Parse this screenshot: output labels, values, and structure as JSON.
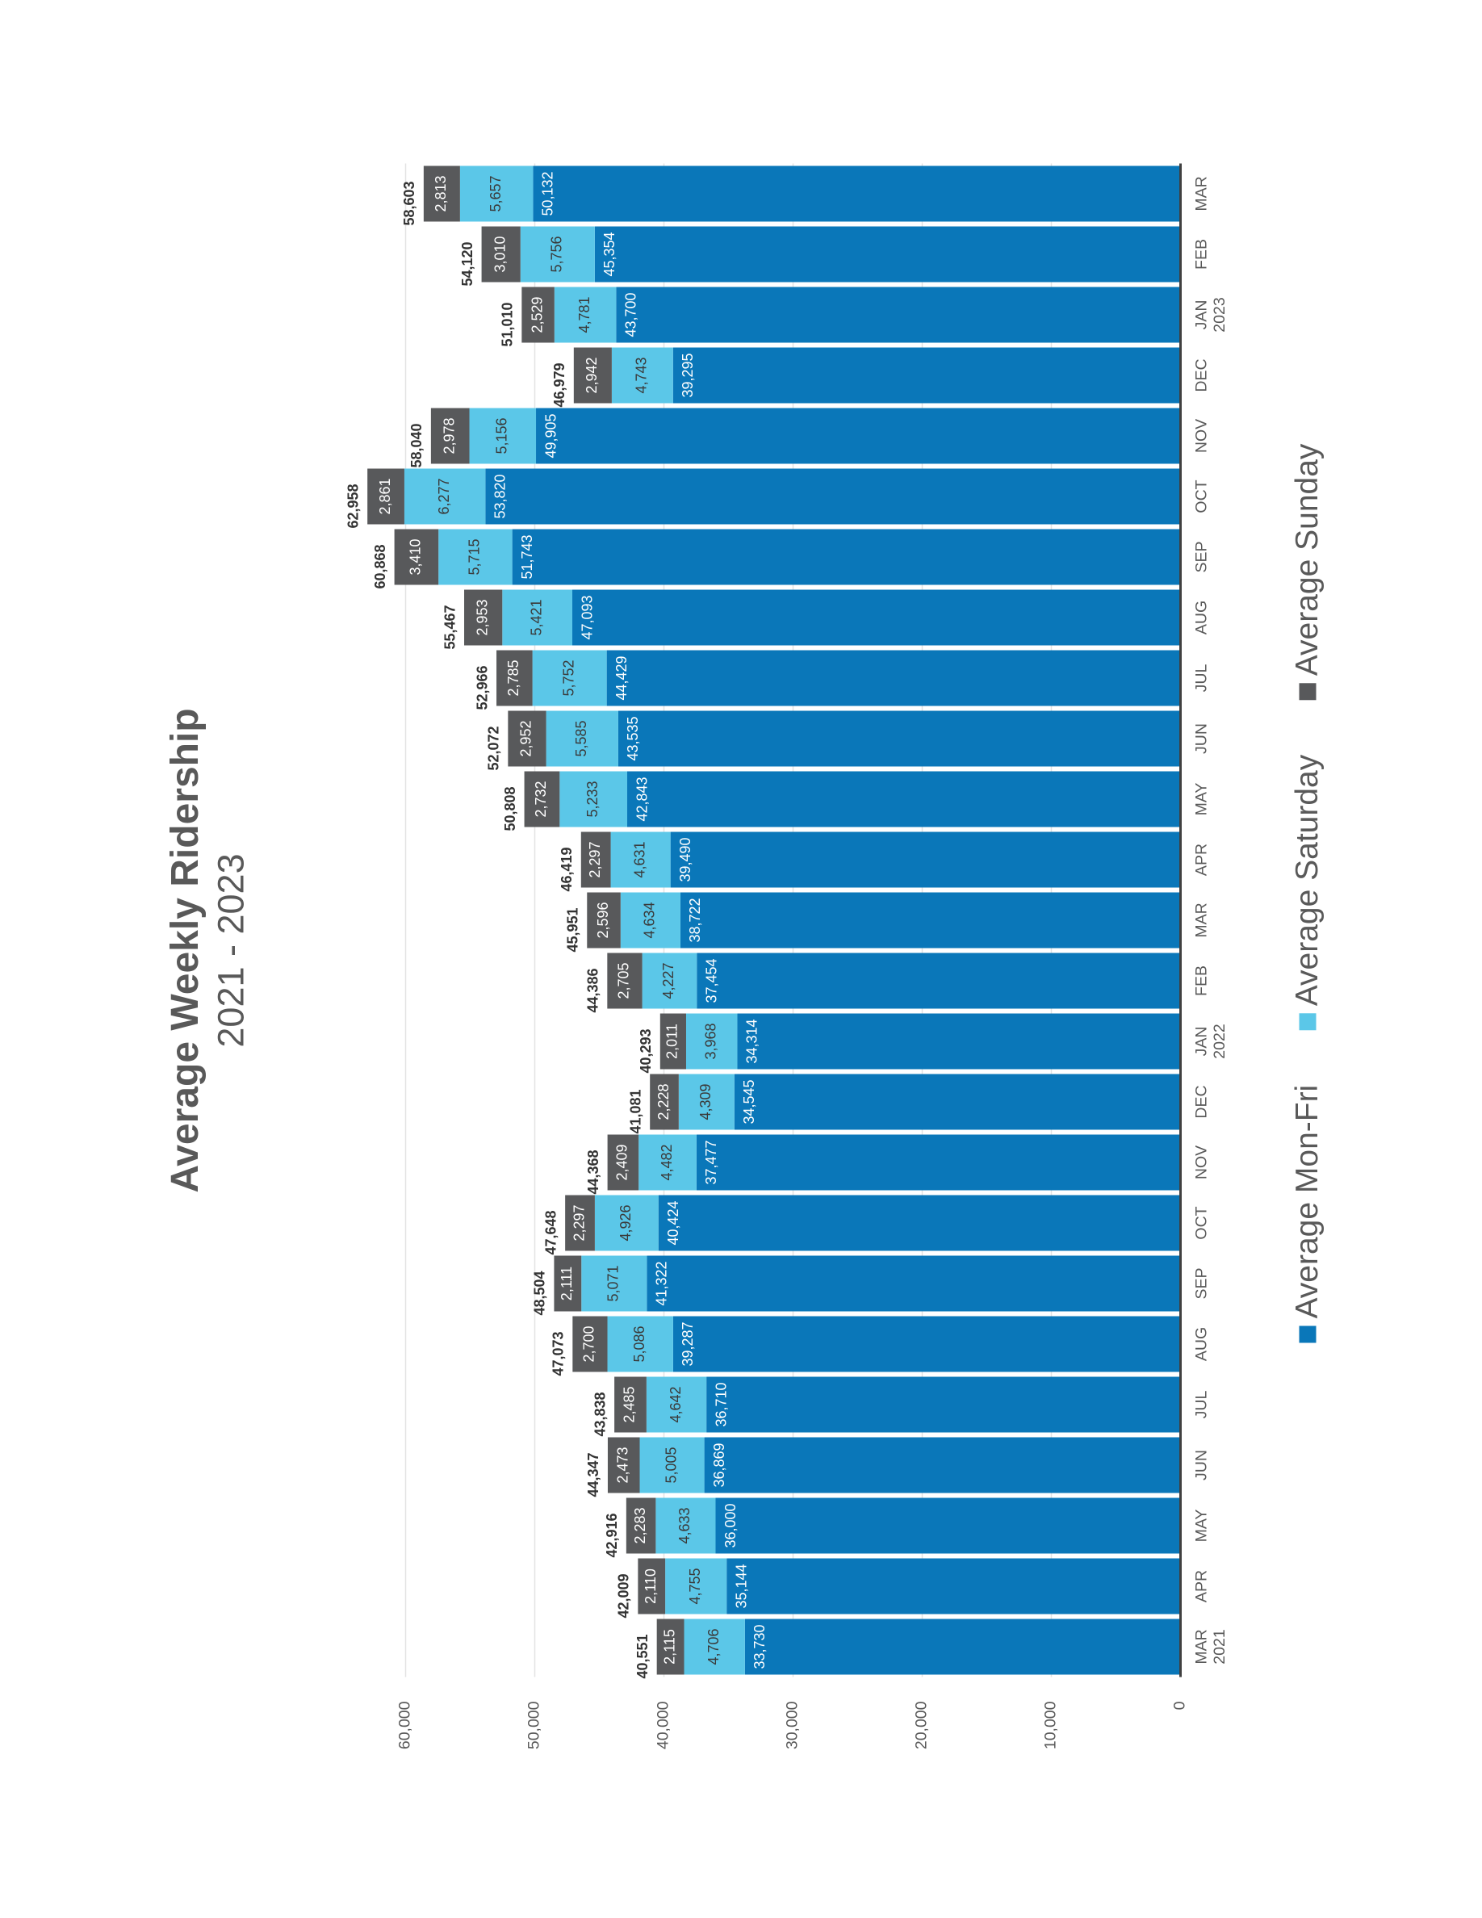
{
  "chart_data": {
    "type": "stacked_bar",
    "title": "Average Weekly Ridership",
    "subtitle": "2021 - 2023",
    "categories": [
      "MAR",
      "APR",
      "MAY",
      "JUN",
      "JUL",
      "AUG",
      "SEP",
      "OCT",
      "NOV",
      "DEC",
      "JAN",
      "FEB",
      "MAR",
      "APR",
      "MAY",
      "JUN",
      "JUL",
      "AUG",
      "SEP",
      "OCT",
      "NOV",
      "DEC",
      "JAN",
      "FEB",
      "MAR"
    ],
    "category_years": [
      "2021",
      null,
      null,
      null,
      null,
      null,
      null,
      null,
      null,
      null,
      "2022",
      null,
      null,
      null,
      null,
      null,
      null,
      null,
      null,
      null,
      null,
      null,
      "2023",
      null,
      null
    ],
    "series": [
      {
        "name": "Average Mon-Fri",
        "color": "#0a77b9",
        "values": [
          33730,
          35144,
          36000,
          36869,
          36710,
          39287,
          41322,
          40424,
          37477,
          34545,
          34314,
          37454,
          38722,
          39490,
          42843,
          43535,
          44429,
          47093,
          51743,
          53820,
          49905,
          39295,
          43700,
          45354,
          50132
        ],
        "value_labels": [
          "33,730",
          "35,144",
          "36,000",
          "36,869",
          "36,710",
          "39,287",
          "41,322",
          "40,424",
          "37,477",
          "34,545",
          "34,314",
          "37,454",
          "38,722",
          "39,490",
          "42,843",
          "43,535",
          "44,429",
          "47,093",
          "51,743",
          "53,820",
          "49,905",
          "39,295",
          "43,700",
          "45,354",
          "50,132"
        ]
      },
      {
        "name": "Average Saturday",
        "color": "#5bc7e8",
        "values": [
          4706,
          4755,
          4633,
          5005,
          4642,
          5086,
          5071,
          4926,
          4482,
          4309,
          3968,
          4227,
          4634,
          4631,
          5233,
          5585,
          5752,
          5421,
          5715,
          6277,
          5156,
          4743,
          4781,
          5756,
          5657
        ],
        "value_labels": [
          "4,706",
          "4,755",
          "4,633",
          "5,005",
          "4,642",
          "5,086",
          "5,071",
          "4,926",
          "4,482",
          "4,309",
          "3,968",
          "4,227",
          "4,634",
          "4,631",
          "5,233",
          "5,585",
          "5,752",
          "5,421",
          "5,715",
          "6,277",
          "5,156",
          "4,743",
          "4,781",
          "5,756",
          "5,657"
        ]
      },
      {
        "name": "Average Sunday",
        "color": "#58595b",
        "values": [
          2115,
          2110,
          2283,
          2473,
          2485,
          2700,
          2111,
          2297,
          2409,
          2228,
          2011,
          2705,
          2596,
          2297,
          2732,
          2952,
          2785,
          2953,
          3410,
          2861,
          2978,
          2942,
          2529,
          3010,
          2813
        ],
        "value_labels": [
          "2,115",
          "2,110",
          "2,283",
          "2,473",
          "2,485",
          "2,700",
          "2,111",
          "2,297",
          "2,409",
          "2,228",
          "2,011",
          "2,705",
          "2,596",
          "2,297",
          "2,732",
          "2,952",
          "2,785",
          "2,953",
          "3,410",
          "2,861",
          "2,978",
          "2,942",
          "2,529",
          "3,010",
          "2,813"
        ]
      }
    ],
    "totals": [
      40551,
      42009,
      42916,
      44347,
      43838,
      47073,
      48504,
      47648,
      44368,
      41081,
      40293,
      44386,
      45951,
      46419,
      50808,
      52072,
      52966,
      55467,
      60868,
      62958,
      58040,
      46979,
      51010,
      54120,
      58603
    ],
    "total_labels": [
      "40,551",
      "42,009",
      "42,916",
      "44,347",
      "43,838",
      "47,073",
      "48,504",
      "47,648",
      "44,368",
      "41,081",
      "40,293",
      "44,386",
      "45,951",
      "46,419",
      "50,808",
      "52,072",
      "52,966",
      "55,467",
      "60,868",
      "62,958",
      "58,040",
      "46,979",
      "51,010",
      "54,120",
      "58,603"
    ],
    "ylim": [
      0,
      60000
    ],
    "yticks": [
      0,
      {
        "value": 10000,
        "label": "10,000"
      },
      {
        "value": 20000,
        "label": "20,000"
      },
      {
        "value": 30000,
        "label": "30,000"
      },
      {
        "value": 40000,
        "label": "40,000"
      },
      {
        "value": 50000,
        "label": "50,000"
      },
      {
        "value": 60000,
        "label": "60,000"
      }
    ],
    "grid": true,
    "legend": "bottom"
  }
}
